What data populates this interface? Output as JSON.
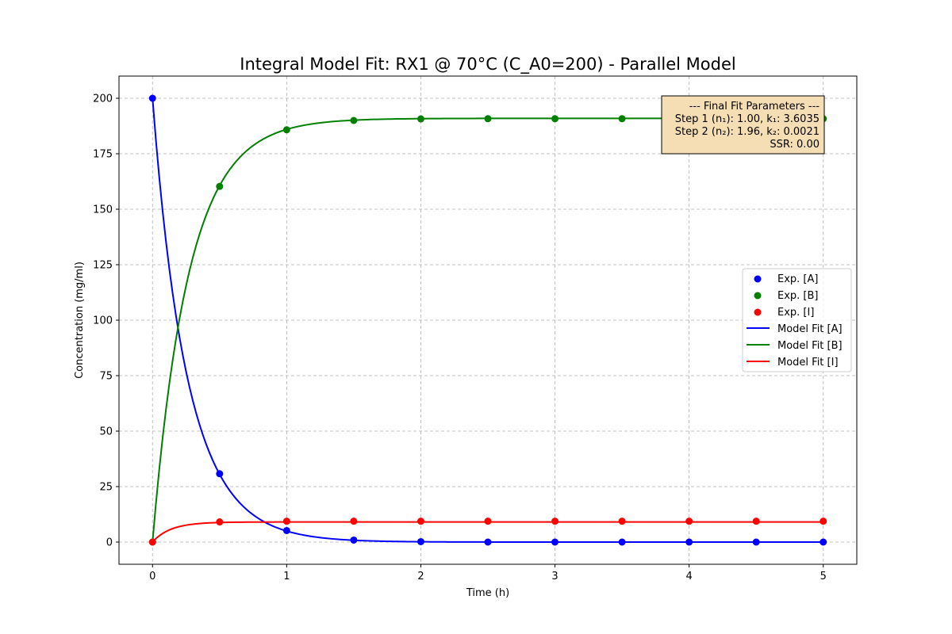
{
  "chart_data": {
    "type": "line",
    "title": "Integral Model Fit: RX1 @ 70°C (C_A0=200) - Parallel Model",
    "xlabel": "Time (h)",
    "ylabel": "Concentration (mg/ml)",
    "xlim": [
      -0.25,
      5.25
    ],
    "ylim": [
      -10,
      210
    ],
    "xticks": [
      "0",
      "1",
      "2",
      "3",
      "4",
      "5"
    ],
    "yticks": [
      "0",
      "25",
      "50",
      "75",
      "100",
      "125",
      "150",
      "175",
      "200"
    ],
    "grid": true,
    "legend_position": "center-right",
    "x": [
      0,
      0.5,
      1,
      1.5,
      2,
      2.5,
      3,
      3.5,
      4,
      4.5,
      5
    ],
    "experimental": [
      {
        "name": "Exp. [A]",
        "color": "#0000ff",
        "values": [
          200,
          30.8,
          5.2,
          0.9,
          0.2,
          0,
          0,
          0,
          0,
          0,
          0
        ]
      },
      {
        "name": "Exp. [B]",
        "color": "#008000",
        "values": [
          0,
          160.3,
          185.8,
          190,
          190.7,
          190.8,
          190.8,
          190.8,
          190.8,
          190.8,
          190.8
        ]
      },
      {
        "name": "Exp. [I]",
        "color": "#ff0000",
        "values": [
          0,
          9.1,
          9.4,
          9.4,
          9.4,
          9.4,
          9.4,
          9.4,
          9.4,
          9.4,
          9.4
        ]
      }
    ],
    "model": [
      {
        "name": "Model Fit [A]",
        "color": "#0000ff"
      },
      {
        "name": "Model Fit [B]",
        "color": "#008000"
      },
      {
        "name": "Model Fit [I]",
        "color": "#ff0000"
      }
    ],
    "model_params": {
      "C_A0": 200,
      "n1": 1.0,
      "k1": 3.6035,
      "n2": 1.96,
      "k2": 0.0021
    },
    "annotation": {
      "lines": [
        "--- Final Fit Parameters ---",
        "Step 1 (n₁): 1.00, k₁: 3.6035",
        "Step 2 (n₂): 1.96, k₂: 0.0021",
        "SSR: 0.00"
      ],
      "background": "#f5deb3"
    }
  }
}
